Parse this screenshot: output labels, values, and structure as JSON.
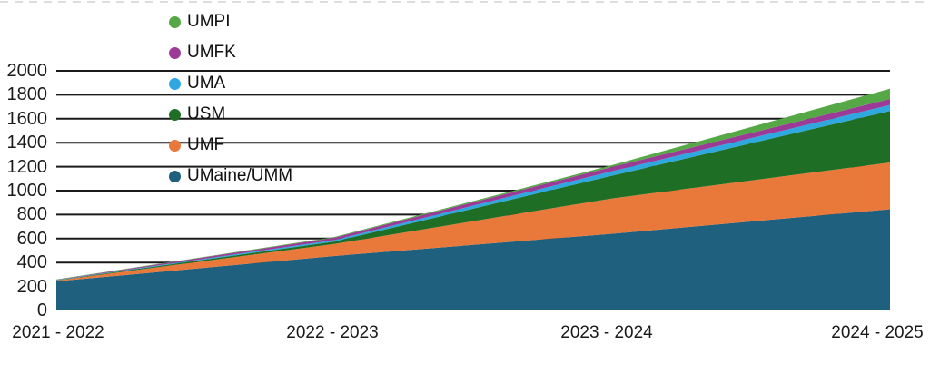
{
  "chart_data": {
    "type": "area",
    "stacked": true,
    "title": "",
    "xlabel": "",
    "ylabel": "",
    "x_categories": [
      "2021 - 2022",
      "2022 - 2023",
      "2023 - 2024",
      "2024 - 2025"
    ],
    "series": [
      {
        "name": "UMaine/UMM",
        "color": "#20607F",
        "values": [
          243,
          455,
          640,
          845
        ]
      },
      {
        "name": "UMF",
        "color": "#E8793B",
        "values": [
          6,
          100,
          295,
          390
        ]
      },
      {
        "name": "USM",
        "color": "#1E6F25",
        "values": [
          3,
          20,
          190,
          430
        ]
      },
      {
        "name": "UMA",
        "color": "#2FA8DF",
        "values": [
          2,
          12,
          37,
          50
        ]
      },
      {
        "name": "UMFK",
        "color": "#9B3B97",
        "values": [
          3,
          20,
          36,
          50
        ]
      },
      {
        "name": "UMPI",
        "color": "#56A846",
        "values": [
          2,
          6,
          15,
          85
        ]
      }
    ],
    "legend_order_top_to_bottom": [
      "UMPI",
      "UMFK",
      "UMA",
      "USM",
      "UMF",
      "UMaine/UMM"
    ],
    "y_ticks": [
      0,
      200,
      400,
      600,
      800,
      1000,
      1200,
      1400,
      1600,
      1800,
      2000
    ],
    "ylim": [
      0,
      2000
    ],
    "grid": true,
    "gridline_color": "#1a1a1a",
    "legend_position": "top-left-overlay"
  }
}
